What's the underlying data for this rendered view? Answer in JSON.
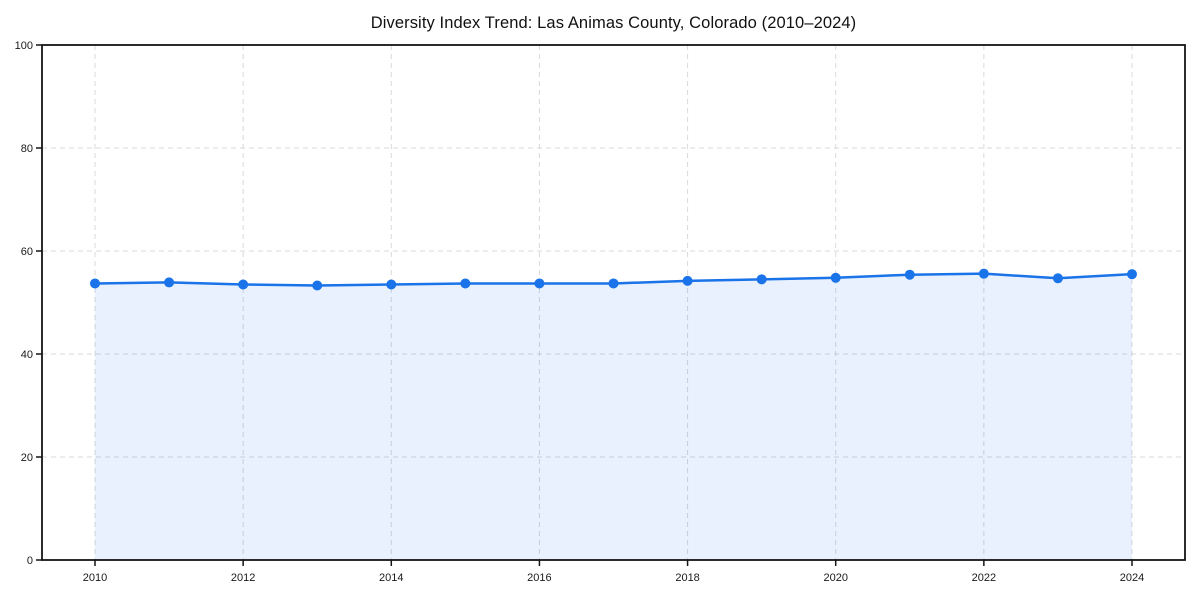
{
  "chart_data": {
    "type": "area",
    "title": "Diversity Index Trend: Las Animas County, Colorado (2010–2024)",
    "series_name": "Diversity Index",
    "x": [
      2010,
      2011,
      2012,
      2013,
      2014,
      2015,
      2016,
      2017,
      2018,
      2019,
      2020,
      2021,
      2022,
      2023,
      2024
    ],
    "values": [
      53.7,
      53.9,
      53.5,
      53.3,
      53.5,
      53.7,
      53.7,
      53.7,
      54.2,
      54.5,
      54.8,
      55.4,
      55.6,
      54.7,
      55.5
    ],
    "xlabel": "",
    "ylabel": "",
    "ylim": [
      0,
      100
    ],
    "yticks": [
      0,
      20,
      40,
      60,
      80,
      100
    ],
    "xticks": [
      2010,
      2012,
      2014,
      2016,
      2018,
      2020,
      2022,
      2024
    ],
    "grid": true,
    "grid_style": "dashed",
    "legend": false,
    "colors": {
      "line": "#1a73e8",
      "marker": "#1a73e8",
      "area_fill": "rgba(26,115,232,0.10)",
      "grid": "#d9d9d9",
      "spine": "#141414",
      "tick_text": "#1a1a1a",
      "title_text": "#111111"
    }
  }
}
